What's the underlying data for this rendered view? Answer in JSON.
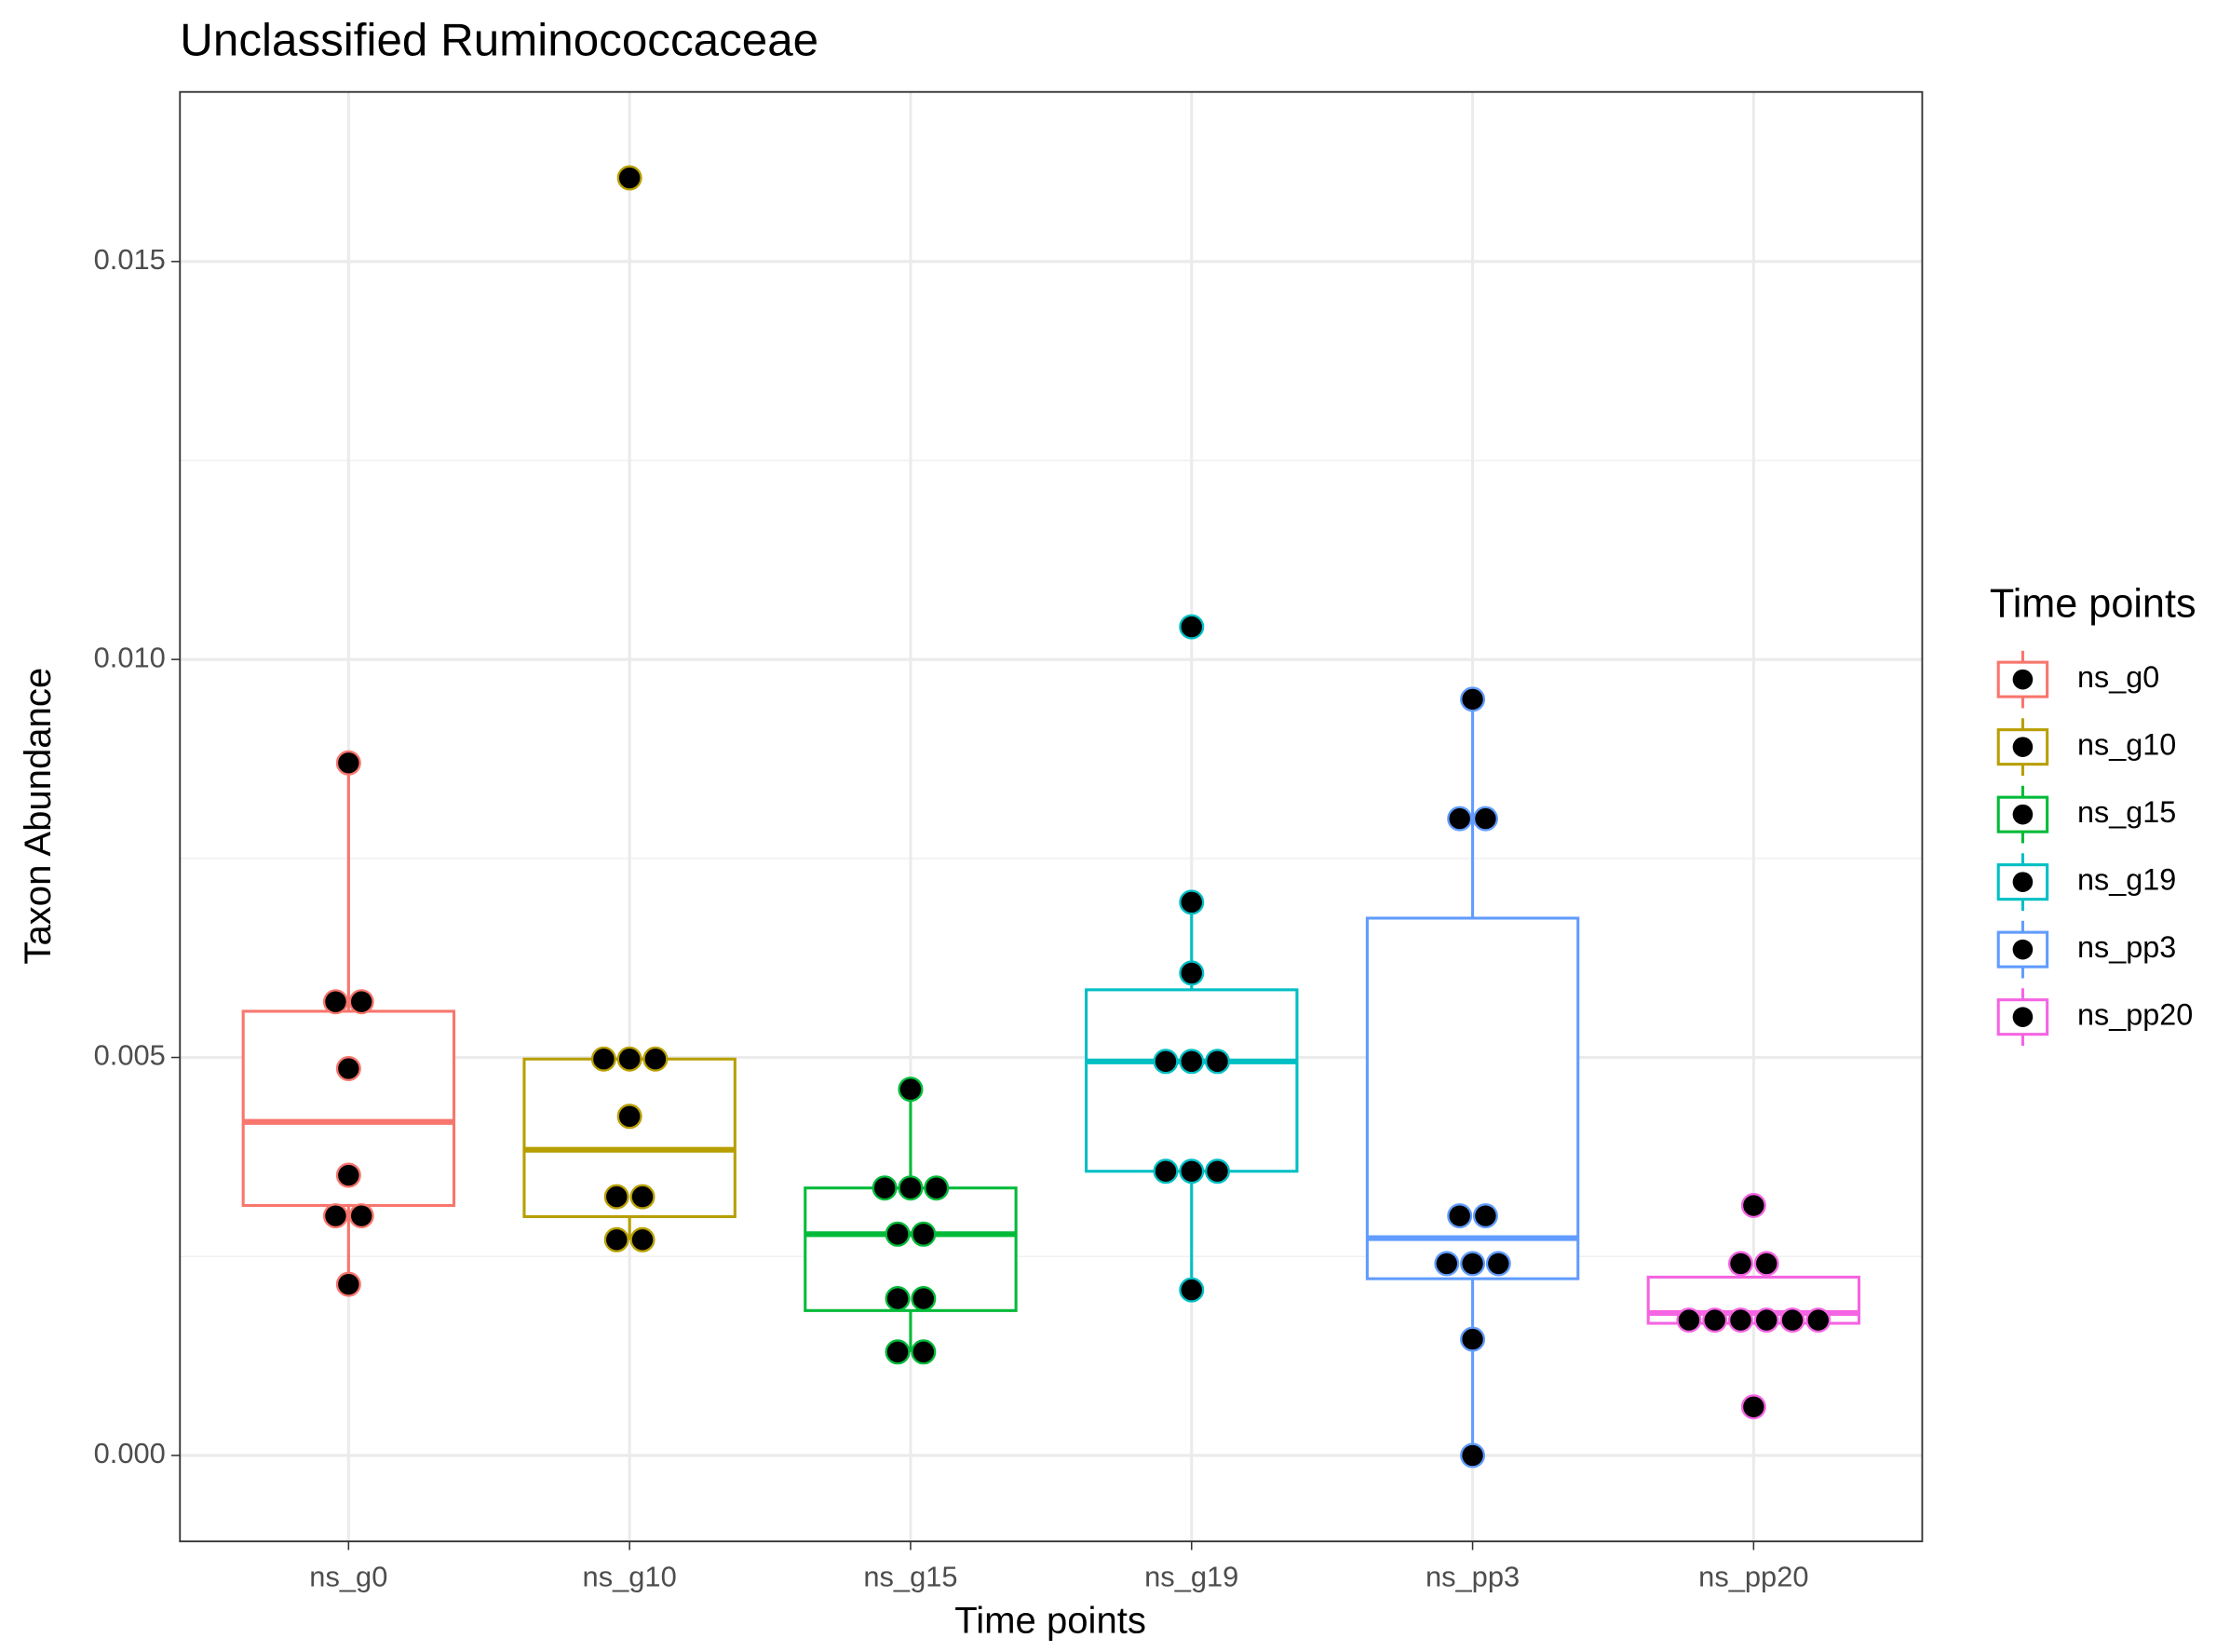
{
  "chart_data": {
    "type": "box",
    "title": "Unclassified Ruminococcaceae",
    "x_label": "Time points",
    "y_label": "Taxon Abundance",
    "legend_title": "Time points",
    "categories": [
      "ns_g0",
      "ns_g10",
      "ns_g15",
      "ns_g19",
      "ns_pp3",
      "ns_pp20"
    ],
    "ylim": [
      -0.00108,
      0.01713
    ],
    "yticks": [
      {
        "value": 0,
        "label": "0.000"
      },
      {
        "value": 0.005,
        "label": "0.005"
      },
      {
        "value": 0.01,
        "label": "0.010"
      },
      {
        "value": 0.015,
        "label": "0.015"
      }
    ],
    "minor_yticks": [
      0.0025,
      0.0075,
      0.0125
    ],
    "grid": true,
    "groups": [
      {
        "name": "ns_g0",
        "color": "#F8766D",
        "q1": 0.00314,
        "median": 0.00419,
        "q3": 0.00558,
        "whisker_low": 0.00215,
        "whisker_high": 0.0087,
        "points": [
          0.0087,
          0.0057,
          0.0057,
          0.00486,
          0.00352,
          0.00301,
          0.00301,
          0.00215
        ]
      },
      {
        "name": "ns_g10",
        "color": "#B79F00",
        "q1": 0.003,
        "median": 0.00384,
        "q3": 0.00498,
        "whisker_low": 0.00271,
        "whisker_high": 0.00498,
        "points": [
          0.01605,
          0.00498,
          0.00498,
          0.00498,
          0.00426,
          0.00325,
          0.00325,
          0.00271,
          0.00271
        ]
      },
      {
        "name": "ns_g15",
        "color": "#00BA38",
        "q1": 0.00182,
        "median": 0.00278,
        "q3": 0.00336,
        "whisker_low": 0.0013,
        "whisker_high": 0.0046,
        "points": [
          0.0046,
          0.00336,
          0.00336,
          0.00336,
          0.00278,
          0.00278,
          0.00197,
          0.00197,
          0.0013,
          0.0013
        ]
      },
      {
        "name": "ns_g19",
        "color": "#00BFC4",
        "q1": 0.00357,
        "median": 0.00495,
        "q3": 0.00585,
        "whisker_low": 0.00208,
        "whisker_high": 0.00695,
        "points": [
          0.01041,
          0.00695,
          0.00606,
          0.00495,
          0.00495,
          0.00495,
          0.00357,
          0.00357,
          0.00357,
          0.00208
        ]
      },
      {
        "name": "ns_pp3",
        "color": "#619CFF",
        "q1": 0.00222,
        "median": 0.00273,
        "q3": 0.00675,
        "whisker_low": 0,
        "whisker_high": 0.0095,
        "points": [
          0.0095,
          0.008,
          0.008,
          0.00301,
          0.00301,
          0.00241,
          0.00241,
          0.00241,
          0.00146,
          0
        ]
      },
      {
        "name": "ns_pp20",
        "color": "#F564E3",
        "q1": 0.00166,
        "median": 0.00179,
        "q3": 0.00224,
        "whisker_low": 0.00166,
        "whisker_high": 0.00224,
        "points": [
          0.00314,
          0.00241,
          0.00241,
          0.0017,
          0.0017,
          0.0017,
          0.0017,
          0.0017,
          0.0017,
          0.00061
        ]
      }
    ]
  }
}
